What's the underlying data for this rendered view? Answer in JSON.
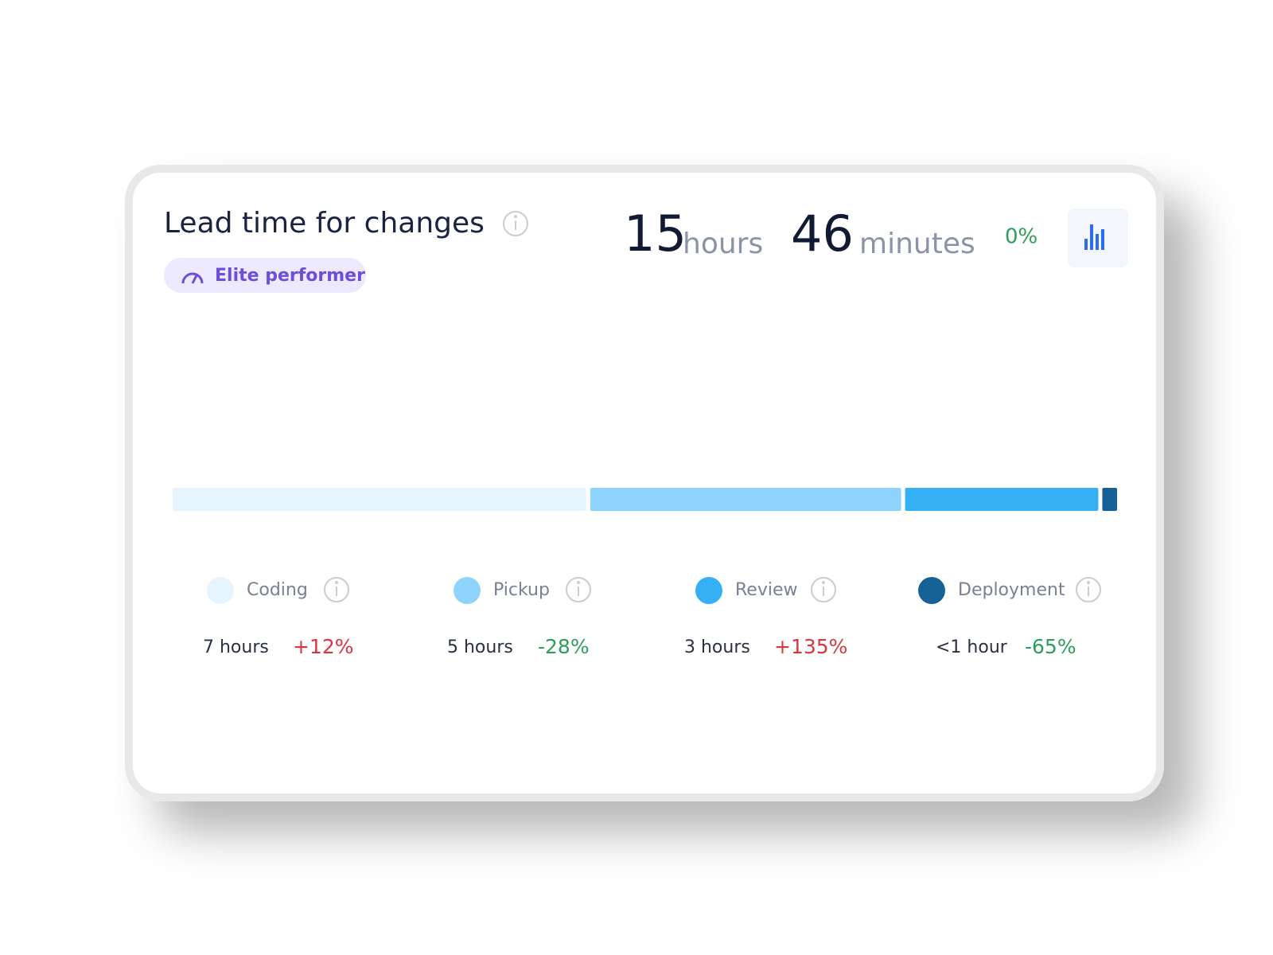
{
  "header": {
    "title": "Lead time for changes",
    "badge": "Elite performer",
    "total": {
      "hours": 15,
      "hours_unit": "hours",
      "minutes": 46,
      "minutes_unit": "minutes",
      "change": "0%",
      "change_color": "#2e9e5b"
    }
  },
  "breakdown": {
    "type": "bar",
    "segments": [
      {
        "name": "Coding",
        "color": "#e6f5fd",
        "value": 7.0,
        "value_label": "7 hours",
        "change": "+12%",
        "change_color": "#d9363e"
      },
      {
        "name": "Pickup",
        "color": "#8dd3fb",
        "value": 5.26,
        "value_label": "5 hours",
        "change": "-28%",
        "change_color": "#2e9e5b"
      },
      {
        "name": "Review",
        "color": "#36b0f5",
        "value": 3.27,
        "value_label": "3 hours",
        "change": "+135%",
        "change_color": "#d9363e"
      },
      {
        "name": "Deployment",
        "color": "#166196",
        "value": 0.25,
        "value_label": "<1 hour",
        "change": "-65%",
        "change_color": "#2e9e5b"
      }
    ]
  }
}
